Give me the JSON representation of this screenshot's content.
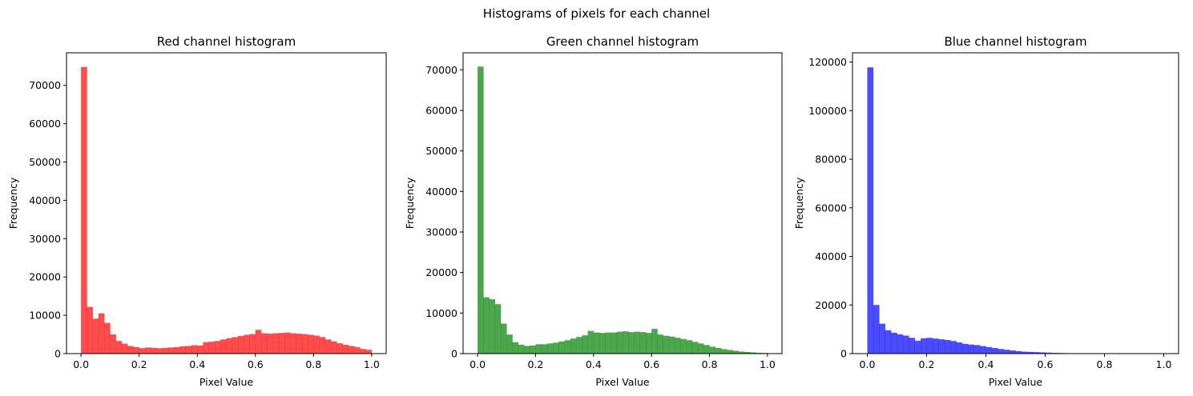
{
  "figure": {
    "title": "Histograms of pixels for each channel"
  },
  "chart_data": [
    {
      "type": "bar",
      "title": "Red channel histogram",
      "xlabel": "Pixel Value",
      "ylabel": "Frequency",
      "xlim": [
        -0.05,
        1.05
      ],
      "ylim": [
        0,
        78500
      ],
      "xticks": [
        0.0,
        0.2,
        0.4,
        0.6,
        0.8,
        1.0
      ],
      "xtick_labels": [
        "0.0",
        "0.2",
        "0.4",
        "0.6",
        "0.8",
        "1.0"
      ],
      "yticks": [
        0,
        10000,
        20000,
        30000,
        40000,
        50000,
        60000,
        70000
      ],
      "ytick_labels": [
        "0",
        "10000",
        "20000",
        "30000",
        "40000",
        "50000",
        "60000",
        "70000"
      ],
      "color": "#ff0000",
      "alpha": 0.7,
      "bin_range": [
        0,
        1
      ],
      "values": [
        74800,
        12200,
        9100,
        10500,
        8000,
        5000,
        3300,
        2600,
        2000,
        1700,
        1400,
        1600,
        1500,
        1400,
        1500,
        1600,
        1700,
        1900,
        2000,
        2200,
        2100,
        3000,
        3100,
        3300,
        3700,
        4000,
        4300,
        4600,
        4900,
        5100,
        6200,
        5300,
        5200,
        5300,
        5400,
        5500,
        5300,
        5200,
        5100,
        4900,
        4700,
        4300,
        3700,
        3200,
        2700,
        2300,
        2000,
        1700,
        1200,
        1000
      ]
    },
    {
      "type": "bar",
      "title": "Green channel histogram",
      "xlabel": "Pixel Value",
      "ylabel": "Frequency",
      "xlim": [
        -0.05,
        1.05
      ],
      "ylim": [
        0,
        74200
      ],
      "xticks": [
        0.0,
        0.2,
        0.4,
        0.6,
        0.8,
        1.0
      ],
      "xtick_labels": [
        "0.0",
        "0.2",
        "0.4",
        "0.6",
        "0.8",
        "1.0"
      ],
      "yticks": [
        0,
        10000,
        20000,
        30000,
        40000,
        50000,
        60000,
        70000
      ],
      "ytick_labels": [
        "0",
        "10000",
        "20000",
        "30000",
        "40000",
        "50000",
        "60000",
        "70000"
      ],
      "color": "#008000",
      "alpha": 0.7,
      "bin_range": [
        0,
        1
      ],
      "values": [
        70800,
        13900,
        13400,
        12200,
        7400,
        4700,
        2800,
        2200,
        1900,
        2000,
        2300,
        2300,
        2500,
        2700,
        3000,
        3300,
        3700,
        4100,
        4500,
        5600,
        5200,
        5100,
        5200,
        5200,
        5400,
        5500,
        5300,
        5400,
        5300,
        5100,
        6100,
        4700,
        4400,
        4200,
        3900,
        3600,
        3300,
        2900,
        2500,
        2100,
        1700,
        1400,
        1100,
        900,
        700,
        500,
        400,
        300,
        200,
        150
      ]
    },
    {
      "type": "bar",
      "title": "Blue channel histogram",
      "xlabel": "Pixel Value",
      "ylabel": "Frequency",
      "xlim": [
        -0.05,
        1.05
      ],
      "ylim": [
        0,
        123800
      ],
      "xticks": [
        0.0,
        0.2,
        0.4,
        0.6,
        0.8,
        1.0
      ],
      "xtick_labels": [
        "0.0",
        "0.2",
        "0.4",
        "0.6",
        "0.8",
        "1.0"
      ],
      "yticks": [
        0,
        20000,
        40000,
        60000,
        80000,
        100000,
        120000
      ],
      "ytick_labels": [
        "0",
        "20000",
        "40000",
        "60000",
        "80000",
        "100000",
        "120000"
      ],
      "color": "#0000ff",
      "alpha": 0.7,
      "bin_range": [
        0,
        0.96
      ],
      "values": [
        117800,
        20000,
        12300,
        9600,
        8600,
        7900,
        7400,
        6500,
        5300,
        6300,
        6500,
        6200,
        5900,
        5600,
        5200,
        4600,
        4000,
        3700,
        3500,
        3100,
        2700,
        2300,
        1900,
        1600,
        1300,
        1000,
        800,
        700,
        600,
        500,
        400,
        300,
        250,
        200,
        150,
        120,
        100,
        80,
        60,
        50,
        40,
        30,
        25,
        20,
        15,
        10,
        8,
        6
      ]
    }
  ]
}
